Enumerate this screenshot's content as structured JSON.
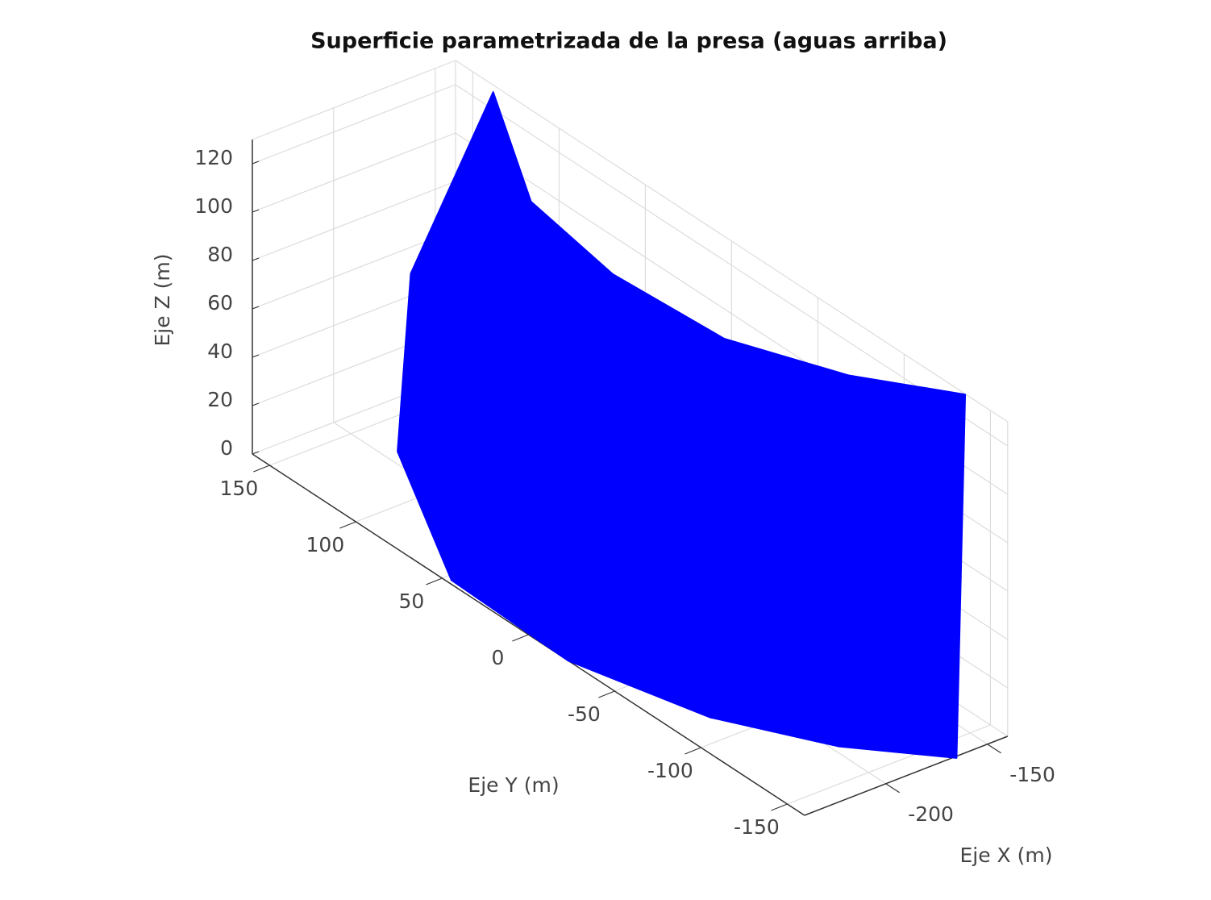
{
  "chart_data": {
    "type": "surface",
    "title": "Superficie parametrizada de la presa (aguas arriba)",
    "xlabel": "Eje X (m)",
    "ylabel": "Eje Y (m)",
    "zlabel": "Eje Z (m)",
    "xlim": [
      -240,
      -140
    ],
    "ylim": [
      -160,
      160
    ],
    "zlim": [
      0,
      130
    ],
    "xticks": [
      -200,
      -150
    ],
    "yticks": [
      -150,
      -100,
      -50,
      0,
      50,
      100,
      150
    ],
    "zticks": [
      0,
      20,
      40,
      60,
      80,
      100,
      120
    ],
    "grid": true,
    "color": "#0000ff",
    "x": [
      [
        -194,
        -238,
        -240,
        -223,
        -197,
        -166
      ],
      [
        -179,
        -213,
        -218,
        -204,
        -181,
        -152
      ],
      [
        -141,
        -181,
        -190,
        -186,
        -165,
        -138
      ]
    ],
    "y": [
      [
        130,
        47,
        -23,
        -85,
        -129,
        -161
      ],
      [
        140,
        63,
        -5,
        -68,
        -113,
        -147
      ],
      [
        137,
        68,
        10,
        -50,
        -97,
        -133
      ]
    ],
    "z": [
      [
        0,
        0,
        0,
        0,
        0,
        0
      ],
      [
        64,
        64,
        64,
        64,
        64,
        64
      ],
      [
        128,
        128,
        128,
        128,
        128,
        128
      ]
    ]
  }
}
